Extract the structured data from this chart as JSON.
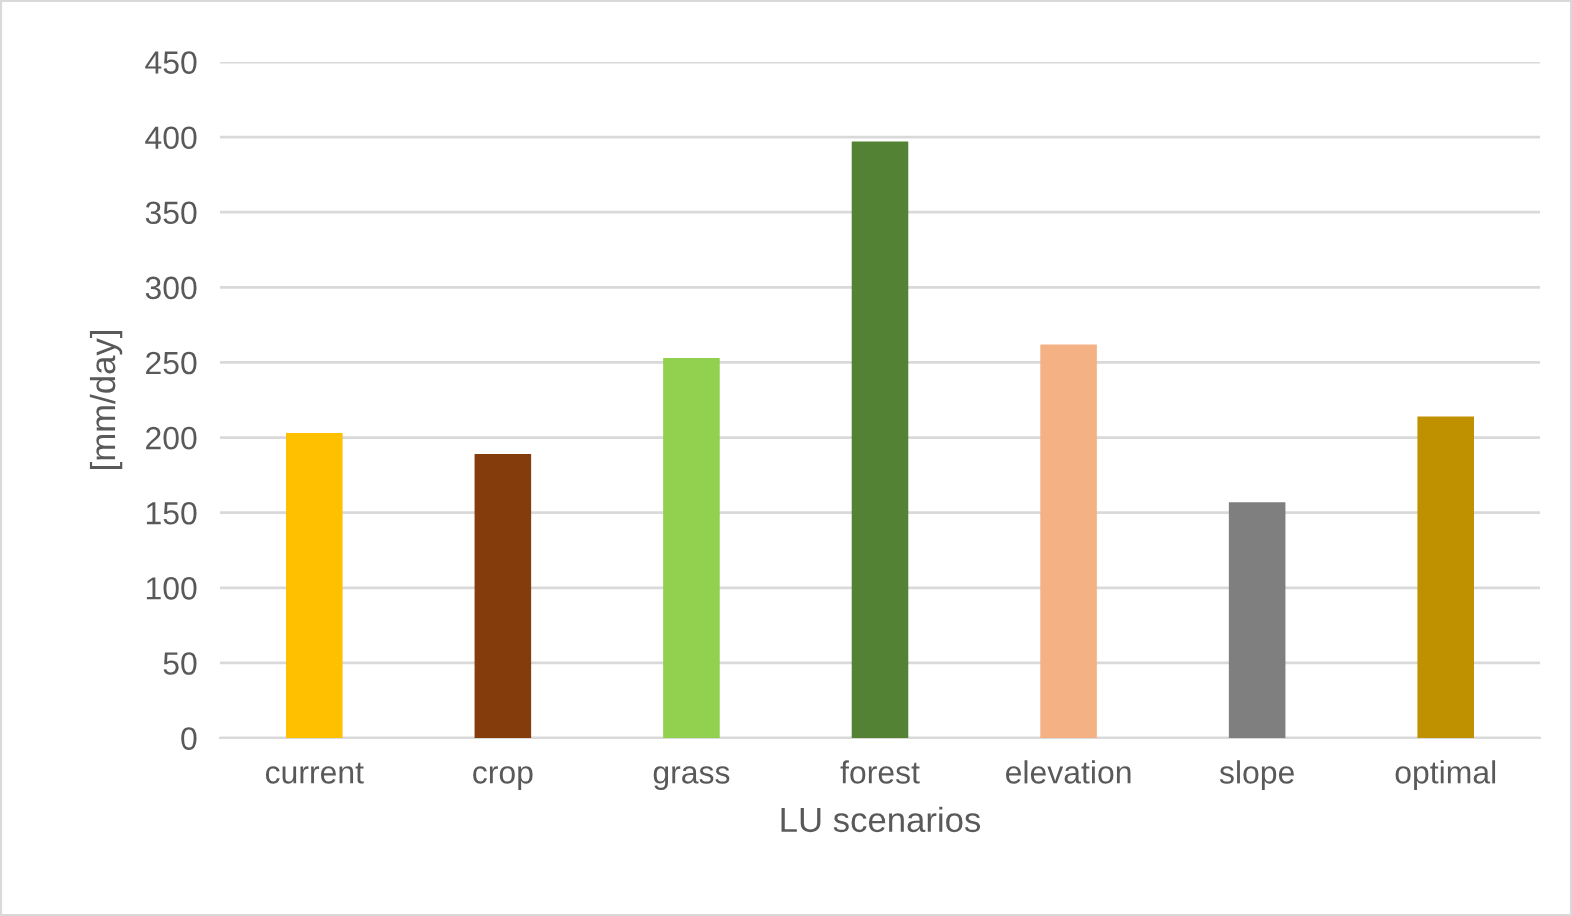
{
  "chart_data": {
    "type": "bar",
    "xlabel": "LU scenarios",
    "ylabel": "[mm/day]",
    "categories": [
      "current",
      "crop",
      "grass",
      "forest",
      "elevation",
      "slope",
      "optimal"
    ],
    "values": [
      203,
      189,
      253,
      397,
      262,
      157,
      214
    ],
    "colors": [
      "#ffc000",
      "#843c0c",
      "#92d050",
      "#548235",
      "#f4b183",
      "#7f7f7f",
      "#bf9000"
    ],
    "ylim": [
      0,
      450
    ],
    "yticks": [
      0,
      50,
      100,
      150,
      200,
      250,
      300,
      350,
      400,
      450
    ],
    "grid": "y",
    "legend": false
  }
}
